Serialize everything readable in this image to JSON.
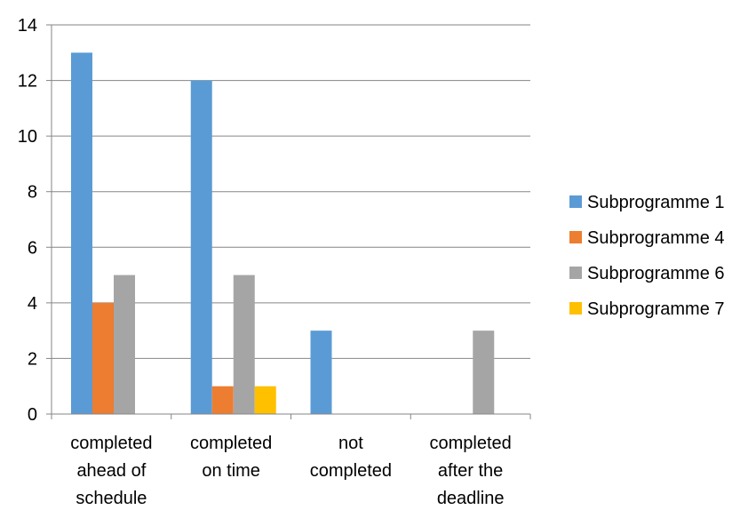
{
  "chart_data": {
    "type": "bar",
    "title": "",
    "xlabel": "",
    "ylabel": "",
    "ylim": [
      0,
      14
    ],
    "yticks": [
      "0",
      "2",
      "4",
      "6",
      "8",
      "10",
      "12",
      "14"
    ],
    "grid": true,
    "legend_position": "right",
    "categories": [
      [
        "completed",
        "ahead of",
        "schedule"
      ],
      [
        "completed",
        "on time"
      ],
      [
        "not",
        "completed"
      ],
      [
        "completed",
        "after the",
        "deadline"
      ]
    ],
    "series": [
      {
        "name": "Subprogramme 1",
        "color": "#5B9BD5",
        "values": [
          13,
          12,
          3,
          0
        ]
      },
      {
        "name": "Subprogramme 4",
        "color": "#ED7D31",
        "values": [
          4,
          1,
          0,
          0
        ]
      },
      {
        "name": "Subprogramme 6",
        "color": "#A5A5A5",
        "values": [
          5,
          5,
          0,
          3
        ]
      },
      {
        "name": "Subprogramme 7",
        "color": "#FFC000",
        "values": [
          0,
          1,
          0,
          0
        ]
      }
    ]
  }
}
